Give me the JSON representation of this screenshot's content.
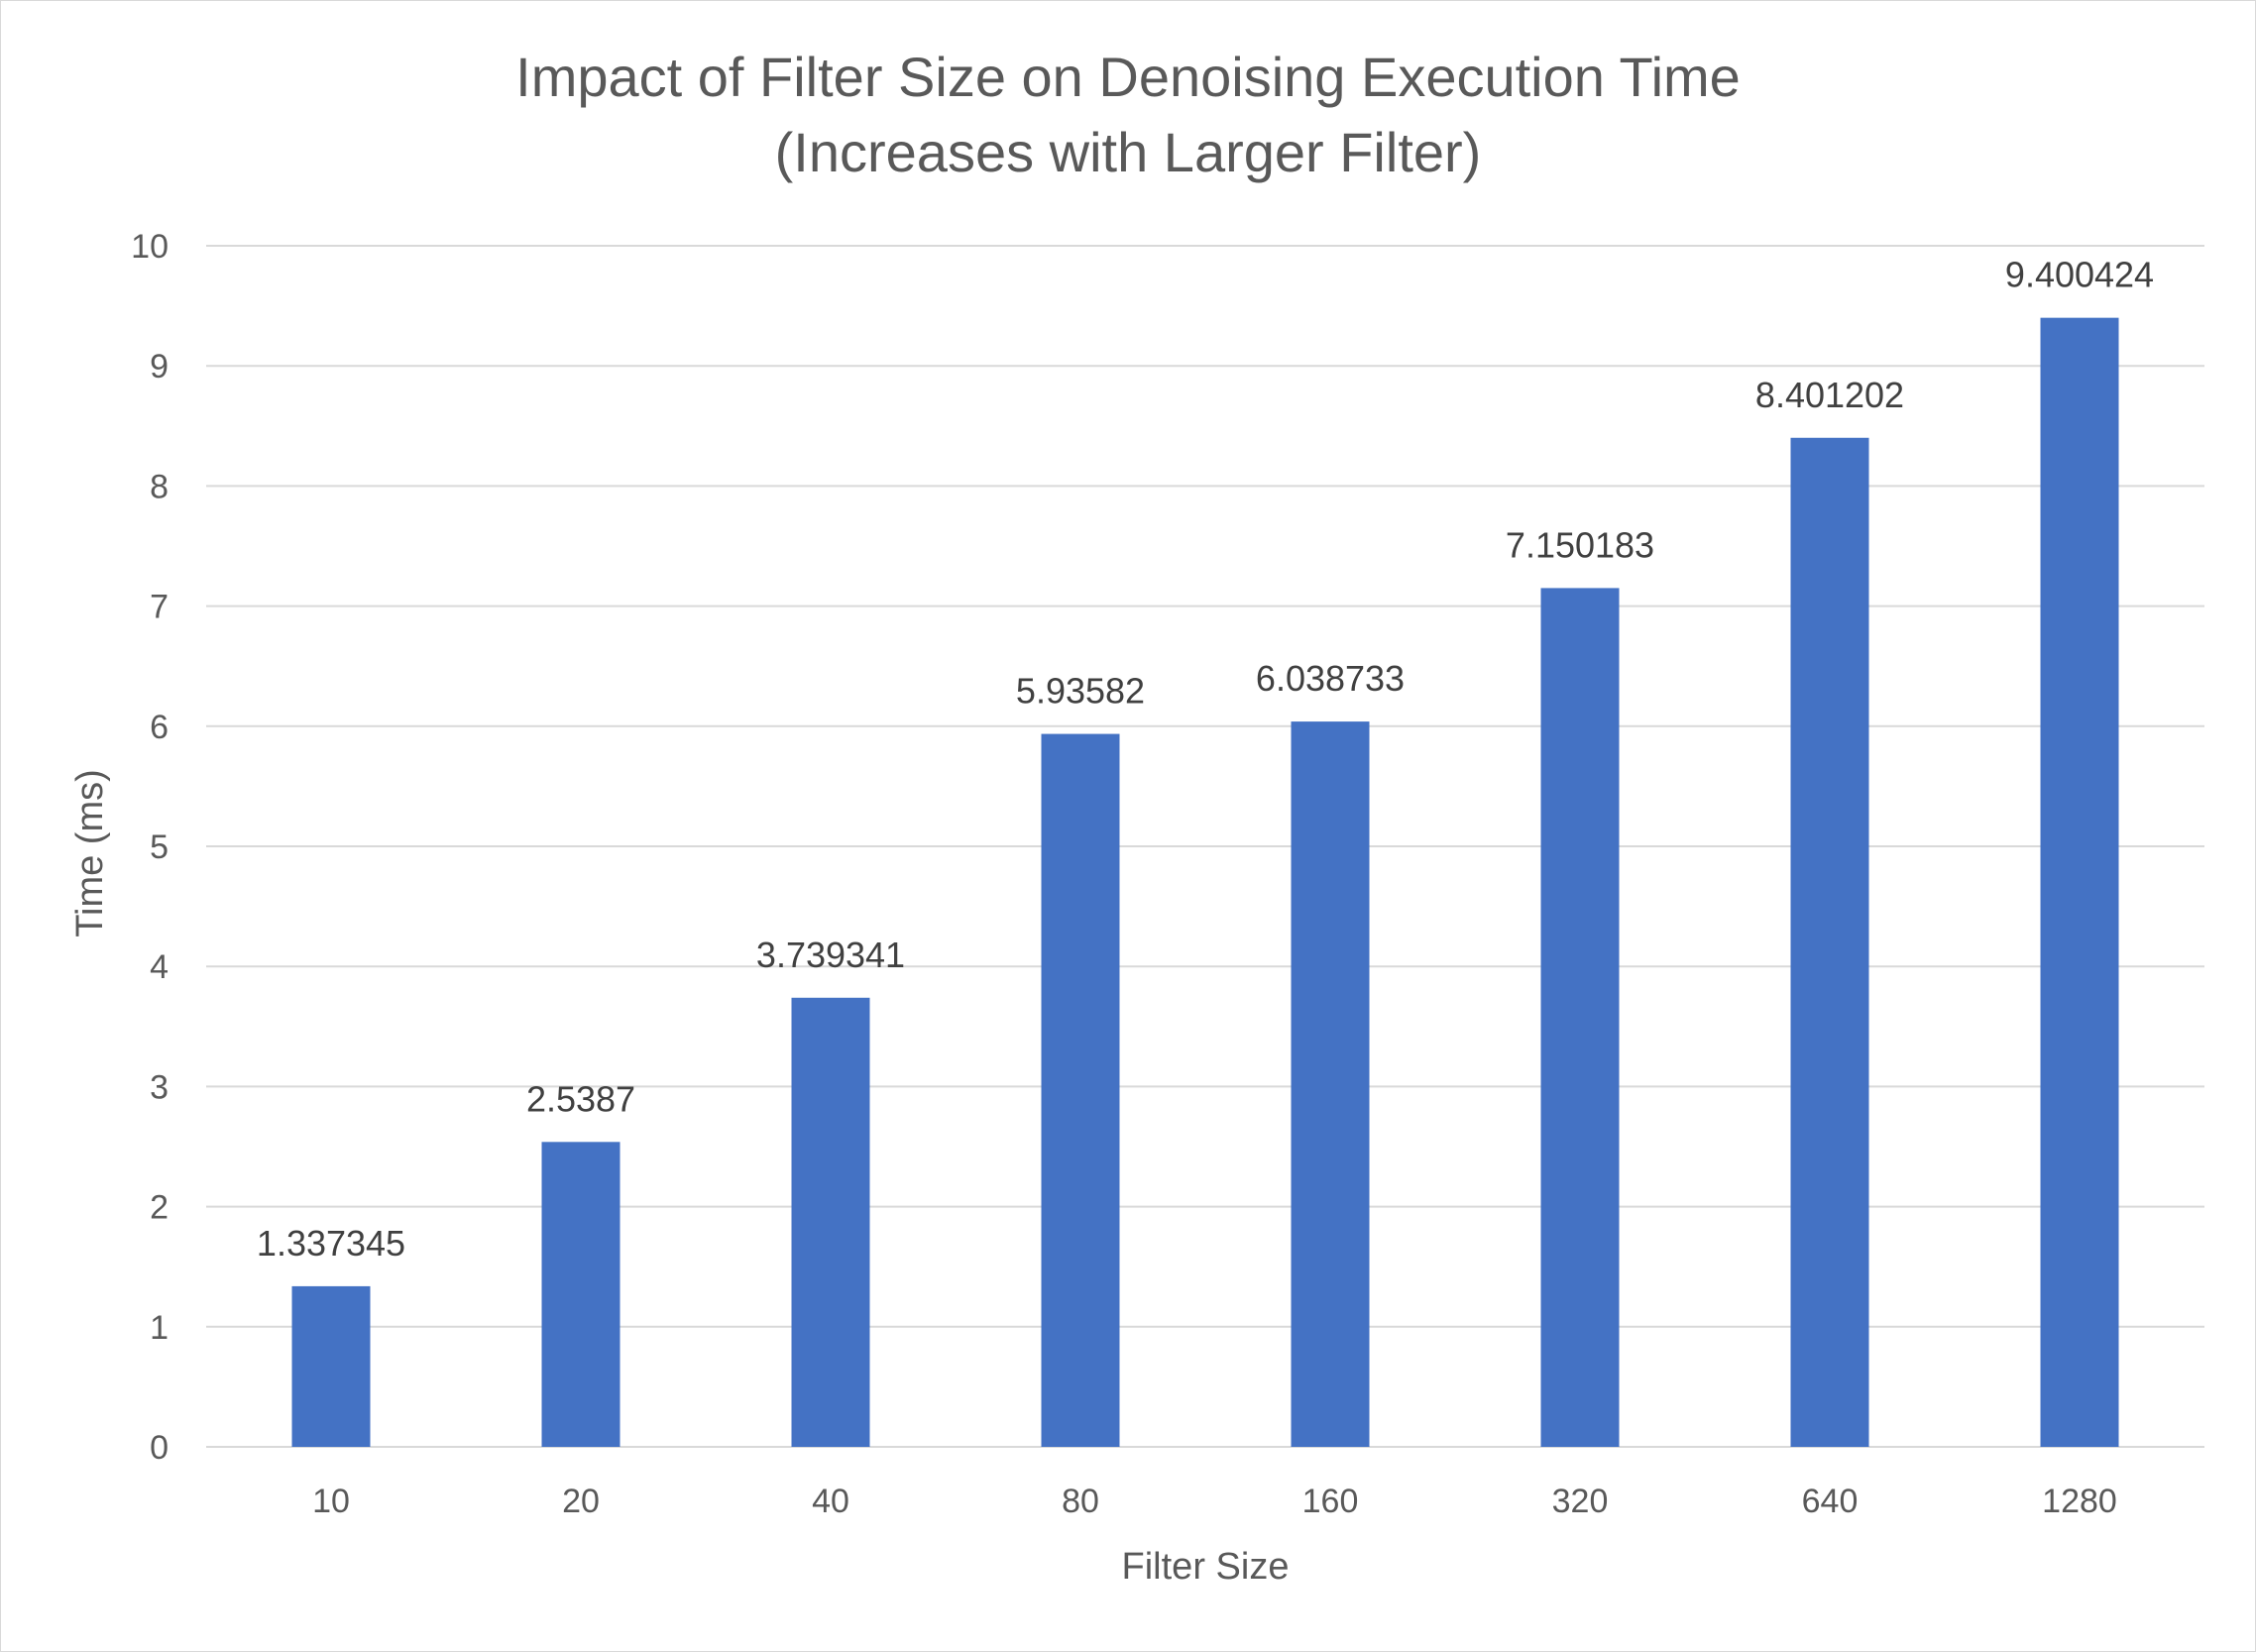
{
  "chart_data": {
    "type": "bar",
    "title": "Impact of Filter Size on Denoising Execution Time",
    "subtitle": "(Increases with Larger Filter)",
    "xlabel": "Filter Size",
    "ylabel": "Time (ms)",
    "categories": [
      "10",
      "20",
      "40",
      "80",
      "160",
      "320",
      "640",
      "1280"
    ],
    "values": [
      1.337345,
      2.5387,
      3.739341,
      5.93582,
      6.038733,
      7.150183,
      8.401202,
      9.400424
    ],
    "data_labels": [
      "1.337345",
      "2.5387",
      "3.739341",
      "5.93582",
      "6.038733",
      "7.150183",
      "8.401202",
      "9.400424"
    ],
    "ylim": [
      0,
      10
    ],
    "yticks": [
      0,
      1,
      2,
      3,
      4,
      5,
      6,
      7,
      8,
      9,
      10
    ],
    "grid": true,
    "legend": "none",
    "colors": {
      "bar": "#4472C4",
      "grid": "#d9d9d9",
      "text": "#595959"
    }
  }
}
